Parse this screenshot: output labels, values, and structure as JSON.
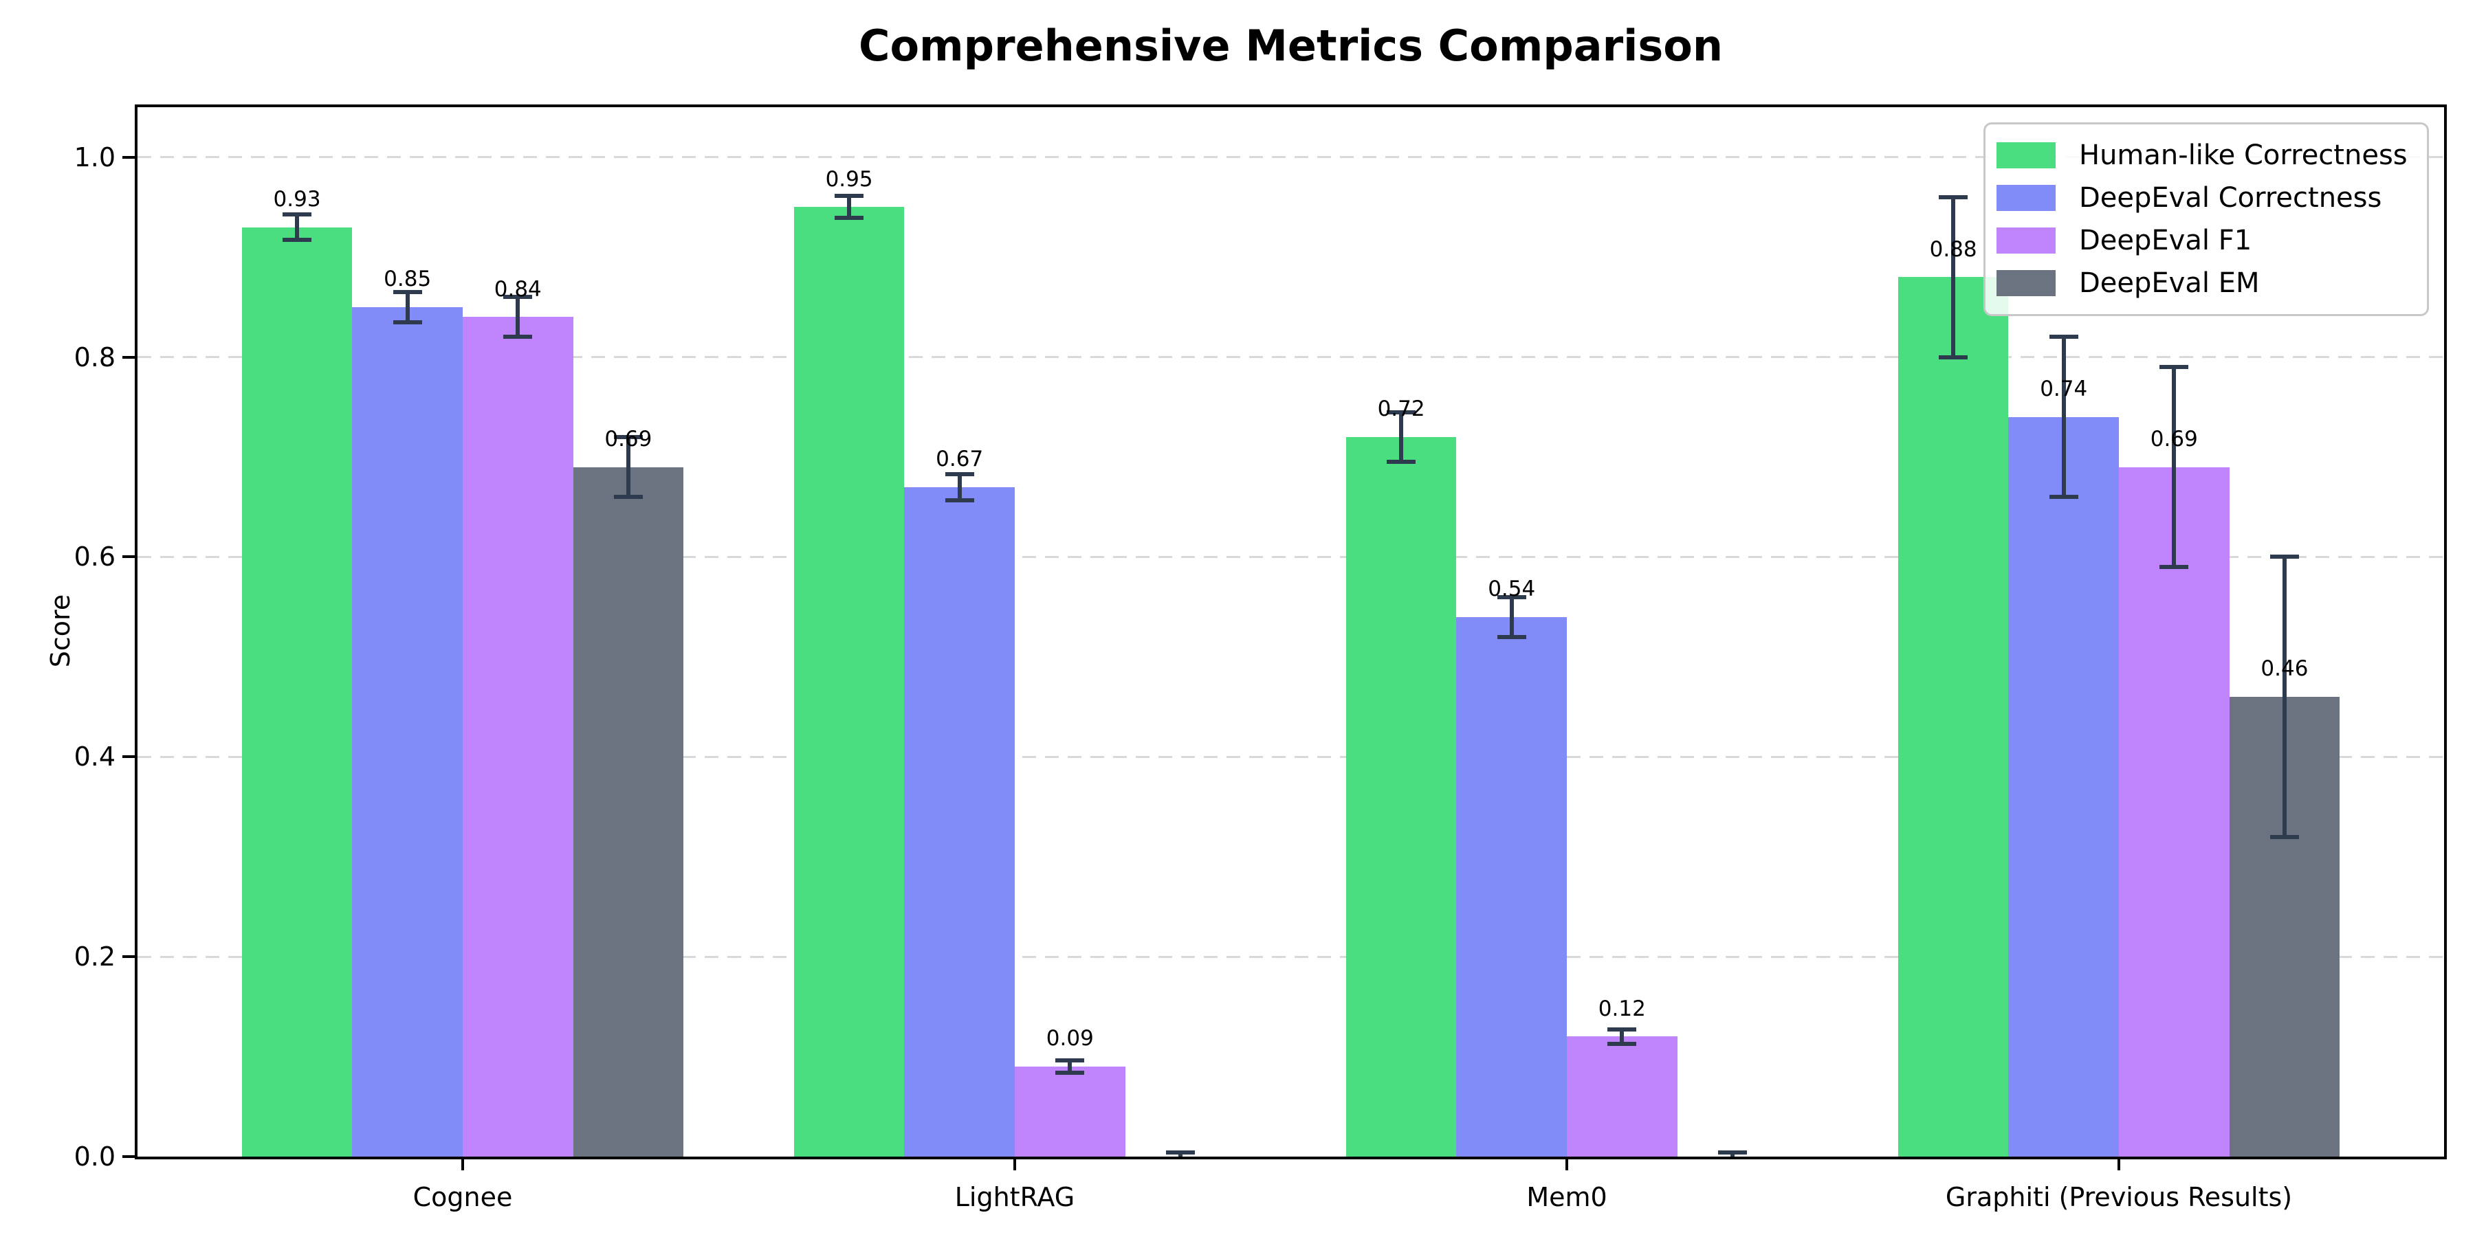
{
  "chart_data": {
    "type": "bar",
    "title": "Comprehensive Metrics Comparison",
    "ylabel": "Score",
    "categories": [
      "Cognee",
      "LightRAG",
      "Mem0",
      "Graphiti (Previous Results)"
    ],
    "series": [
      {
        "name": "Human-like Correctness",
        "color": "#4ade80",
        "values": [
          0.93,
          0.95,
          0.72,
          0.88
        ],
        "errors": [
          0.013,
          0.011,
          0.025,
          0.08
        ]
      },
      {
        "name": "DeepEval Correctness",
        "color": "#818cf8",
        "values": [
          0.85,
          0.67,
          0.54,
          0.74
        ],
        "errors": [
          0.015,
          0.013,
          0.02,
          0.08
        ]
      },
      {
        "name": "DeepEval F1",
        "color": "#c084fc",
        "values": [
          0.84,
          0.09,
          0.12,
          0.69
        ],
        "errors": [
          0.02,
          0.006,
          0.007,
          0.1
        ]
      },
      {
        "name": "DeepEval EM",
        "color": "#6b7280",
        "values": [
          0.69,
          0.0,
          0.0,
          0.46
        ],
        "errors": [
          0.03,
          0.004,
          0.004,
          0.14
        ]
      }
    ],
    "value_labels": [
      [
        "0.93",
        "0.95",
        "0.72",
        "0.88"
      ],
      [
        "0.85",
        "0.67",
        "0.54",
        "0.74"
      ],
      [
        "0.84",
        "0.09",
        "0.12",
        "0.69"
      ],
      [
        "0.69",
        "",
        "",
        "0.46"
      ]
    ],
    "yticks": [
      "0.0",
      "0.2",
      "0.4",
      "0.6",
      "0.8",
      "1.0"
    ],
    "ylim": [
      0,
      1.05
    ],
    "grid": "dashed-horizontal",
    "legend_position": "upper-right",
    "error_bar_color": "#2e3b4e"
  }
}
